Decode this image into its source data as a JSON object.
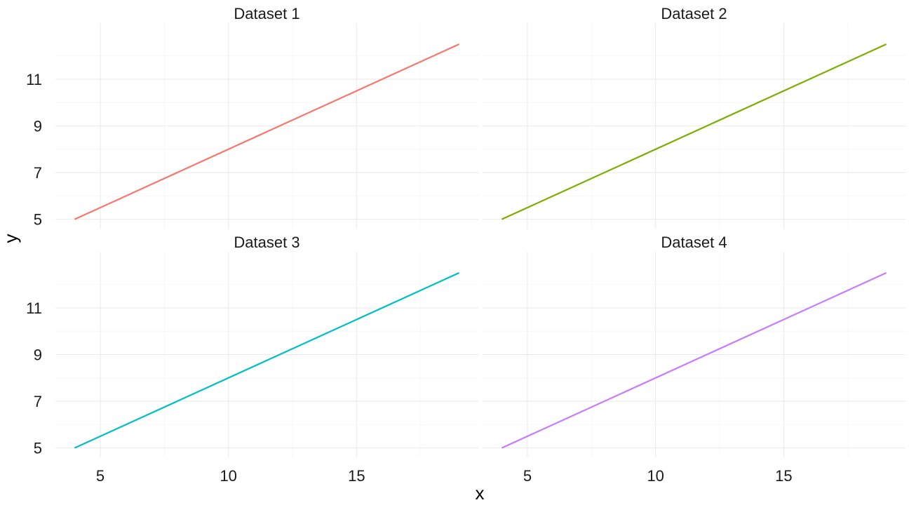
{
  "chart_data": {
    "type": "line",
    "xlabel": "x",
    "ylabel": "y",
    "xlim": [
      3.25,
      19.75
    ],
    "ylim": [
      4.6,
      13.4
    ],
    "x_ticks": [
      5,
      10,
      15
    ],
    "y_ticks": [
      5,
      7,
      9,
      11
    ],
    "grid": true,
    "legend": "none",
    "panels": [
      {
        "title": "Dataset 1",
        "color": "#F8766D",
        "x": [
          4,
          19
        ],
        "y": [
          5,
          12.5
        ]
      },
      {
        "title": "Dataset 2",
        "color": "#7CAE00",
        "x": [
          4,
          19
        ],
        "y": [
          5,
          12.5
        ]
      },
      {
        "title": "Dataset 3",
        "color": "#00BFC4",
        "x": [
          4,
          19
        ],
        "y": [
          5,
          12.5
        ]
      },
      {
        "title": "Dataset 4",
        "color": "#C77CFF",
        "x": [
          4,
          19
        ],
        "y": [
          5,
          12.5
        ]
      }
    ]
  }
}
